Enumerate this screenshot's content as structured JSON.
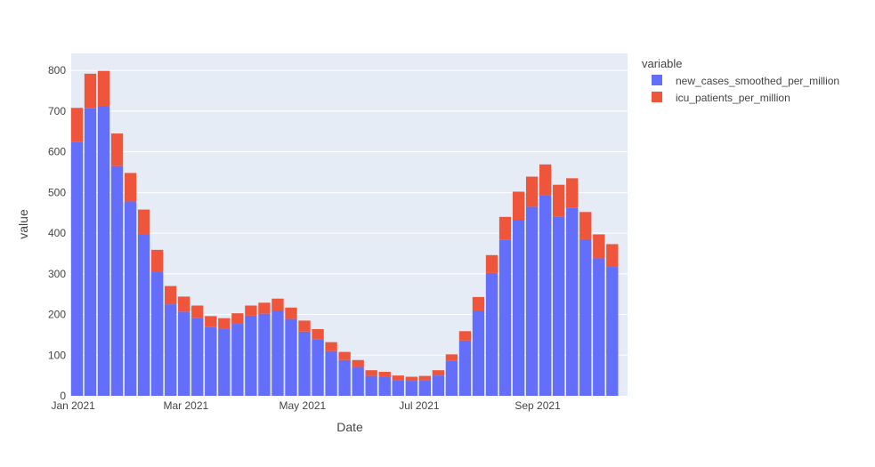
{
  "chart_data": {
    "type": "bar",
    "barmode": "stack",
    "xlabel": "Date",
    "ylabel": "value",
    "x_ticks": [
      {
        "date": "2021-01-01",
        "label": "Jan 2021"
      },
      {
        "date": "2021-03-01",
        "label": "Mar 2021"
      },
      {
        "date": "2021-05-01",
        "label": "May 2021"
      },
      {
        "date": "2021-07-01",
        "label": "Jul 2021"
      },
      {
        "date": "2021-09-01",
        "label": "Sep 2021"
      }
    ],
    "y_ticks": [
      0,
      100,
      200,
      300,
      400,
      500,
      600,
      700,
      800
    ],
    "ylim": [
      0,
      842
    ],
    "xlim": [
      "2020-12-31",
      "2021-10-18"
    ],
    "grid": true,
    "legend": {
      "title": "variable",
      "position": "top-right"
    },
    "x": [
      "2021-01-03",
      "2021-01-10",
      "2021-01-17",
      "2021-01-24",
      "2021-01-31",
      "2021-02-07",
      "2021-02-14",
      "2021-02-21",
      "2021-02-28",
      "2021-03-07",
      "2021-03-14",
      "2021-03-21",
      "2021-03-28",
      "2021-04-04",
      "2021-04-11",
      "2021-04-18",
      "2021-04-25",
      "2021-05-02",
      "2021-05-09",
      "2021-05-16",
      "2021-05-23",
      "2021-05-30",
      "2021-06-06",
      "2021-06-13",
      "2021-06-20",
      "2021-06-27",
      "2021-07-04",
      "2021-07-11",
      "2021-07-18",
      "2021-07-25",
      "2021-08-01",
      "2021-08-08",
      "2021-08-15",
      "2021-08-22",
      "2021-08-29",
      "2021-09-05",
      "2021-09-12",
      "2021-09-19",
      "2021-09-26",
      "2021-10-03",
      "2021-10-10"
    ],
    "series": [
      {
        "name": "new_cases_smoothed_per_million",
        "color": "#636efa",
        "values": [
          625,
          707,
          713,
          565,
          478,
          397,
          306,
          225,
          207,
          192,
          169,
          166,
          177,
          197,
          202,
          210,
          189,
          158,
          138,
          110,
          88,
          71,
          49,
          46,
          39,
          37,
          38,
          50,
          86,
          136,
          210,
          302,
          383,
          433,
          465,
          493,
          441,
          462,
          385,
          338,
          317
        ]
      },
      {
        "name": "icu_patients_per_million",
        "color": "#ef553b",
        "values": [
          83,
          85,
          86,
          80,
          70,
          61,
          53,
          45,
          37,
          30,
          27,
          25,
          26,
          25,
          27,
          29,
          28,
          27,
          26,
          22,
          20,
          17,
          14,
          13,
          11,
          10,
          11,
          13,
          16,
          23,
          33,
          44,
          57,
          69,
          74,
          76,
          78,
          73,
          67,
          59,
          56
        ]
      }
    ]
  }
}
